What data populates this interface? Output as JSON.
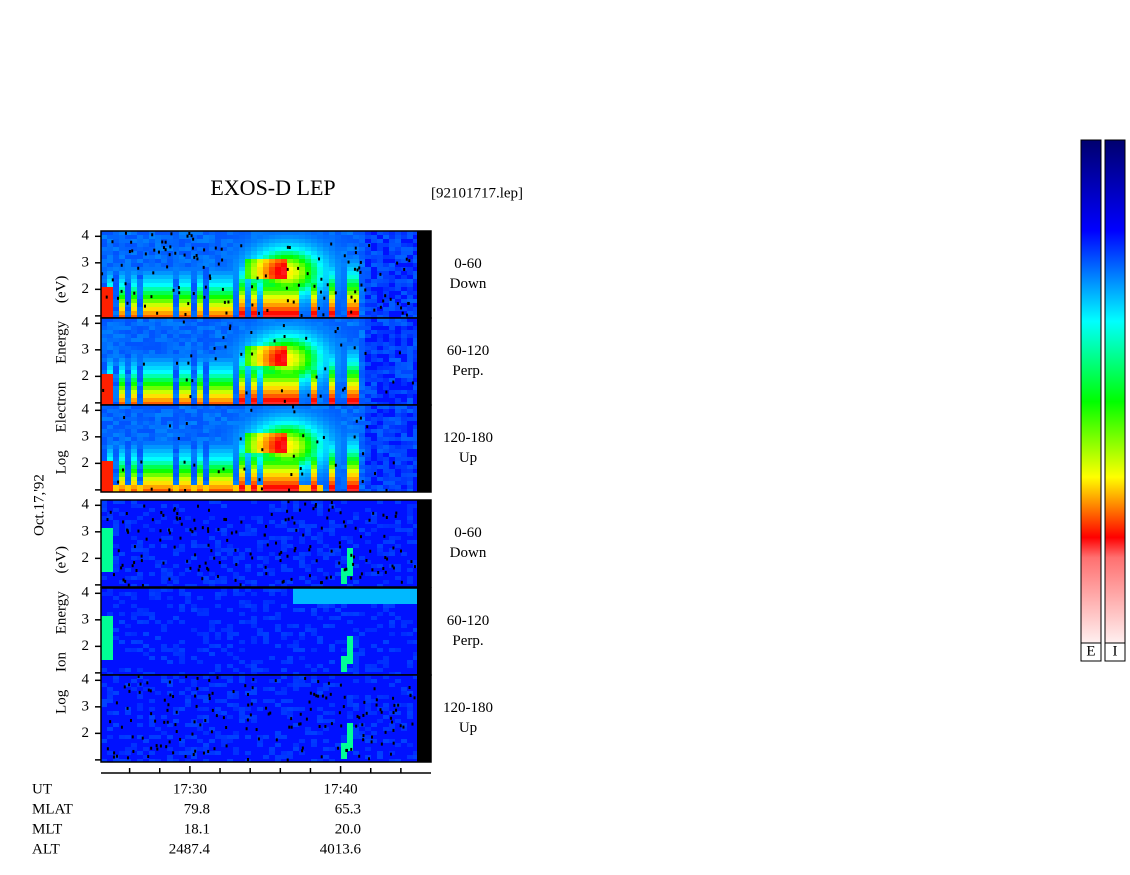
{
  "header": {
    "title": "EXOS-D LEP",
    "file": "[92101717.lep]",
    "date": "Oct.17,'92"
  },
  "electron_axis_label": "Log Electron Energy (eV)",
  "ion_axis_label": "Log Ion Energy (eV)",
  "electron_panels": [
    {
      "range": "0-60",
      "direction": "Down"
    },
    {
      "range": "60-120",
      "direction": "Perp."
    },
    {
      "range": "120-180",
      "direction": "Up"
    }
  ],
  "ion_panels": [
    {
      "range": "0-60",
      "direction": "Down"
    },
    {
      "range": "60-120",
      "direction": "Perp."
    },
    {
      "range": "120-180",
      "direction": "Up"
    }
  ],
  "ylim": [
    0.92,
    4.2
  ],
  "yticks": [
    2,
    3,
    4
  ],
  "unlabeled_yticks": [
    1
  ],
  "xlim": [
    24.1,
    46
  ],
  "xticks": [
    {
      "value": 30,
      "label": "17:30"
    },
    {
      "value": 40,
      "label": "17:40"
    }
  ],
  "minor_xticks": [
    26,
    28,
    32,
    34,
    36,
    38,
    42,
    44
  ],
  "ephemeris": {
    "labels": [
      "UT",
      "MLAT",
      "MLT",
      "ALT"
    ],
    "values": [
      [
        "79.8",
        "65.3"
      ],
      [
        "18.1",
        "20.0"
      ],
      [
        "2487.4",
        "4013.6"
      ]
    ]
  },
  "colorbar_labels": [
    "E",
    "I"
  ]
}
